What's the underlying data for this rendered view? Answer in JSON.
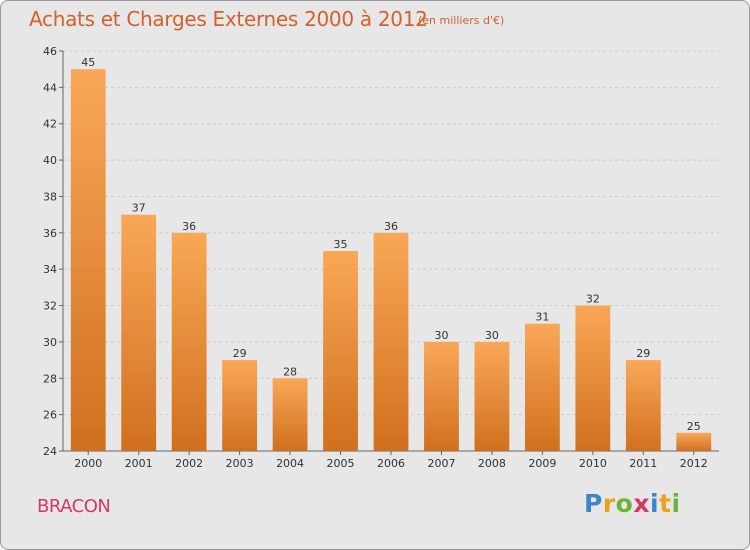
{
  "header": {
    "title": "Achats et Charges Externes 2000 à 2012",
    "subtitle": "(en milliers d'€)"
  },
  "commune": "BRACON",
  "logo": {
    "text": "Proxiti",
    "letters": [
      "P",
      "r",
      "o",
      "x",
      "i",
      "t",
      "i"
    ],
    "colors": [
      "#3a86c8",
      "#f0a020",
      "#6bb536",
      "#d63864",
      "#3a86c8",
      "#f0a020",
      "#6bb536"
    ]
  },
  "colors": {
    "bar_light": "#f9a858",
    "bar_dark": "#d0701e",
    "title": "#d6602c",
    "commune": "#d63864"
  },
  "chart_data": {
    "type": "bar",
    "title": "Achats et Charges Externes 2000 à 2012",
    "subtitle": "(en milliers d'€)",
    "categories": [
      "2000",
      "2001",
      "2002",
      "2003",
      "2004",
      "2005",
      "2006",
      "2007",
      "2008",
      "2009",
      "2010",
      "2011",
      "2012"
    ],
    "values": [
      45,
      37,
      36,
      29,
      28,
      35,
      36,
      30,
      30,
      31,
      32,
      29,
      25
    ],
    "ylim": [
      24,
      46
    ],
    "yticks": [
      24,
      26,
      28,
      30,
      32,
      34,
      36,
      38,
      40,
      42,
      44,
      46
    ],
    "grid": true,
    "xlabel": "",
    "ylabel": ""
  }
}
